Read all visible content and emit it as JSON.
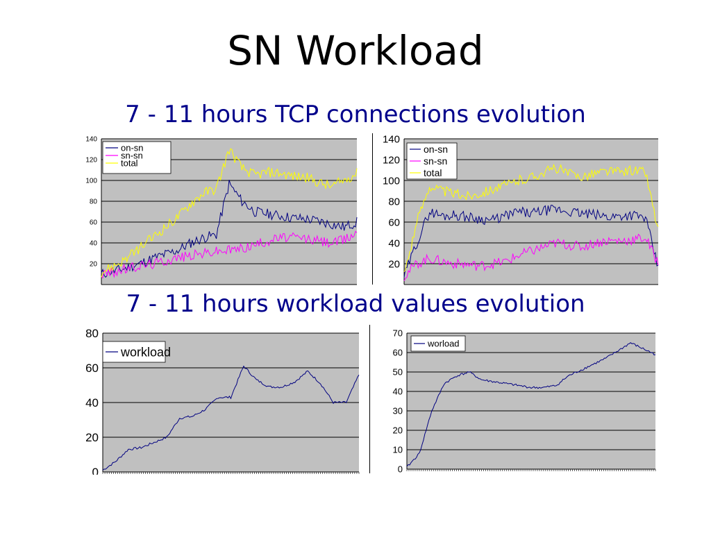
{
  "slide": {
    "title": "SN Workload",
    "heading_tcp": "7 - 11 hours TCP connections evolution",
    "heading_workload": "7 - 11 hours workload values evolution"
  },
  "colors": {
    "plot_bg": "#c0c0c0",
    "gridline": "#000000",
    "on_sn": "#000080",
    "sn_sn": "#ff00ff",
    "total": "#ffff00",
    "workload": "#000080",
    "title": "#000000",
    "heading": "#00008b"
  },
  "chart_data": [
    {
      "type": "line",
      "ylim": [
        0,
        140
      ],
      "ytick_labels": [
        "20",
        "40",
        "60",
        "80",
        "100",
        "120",
        "140"
      ],
      "grid": true,
      "legend_position": "top-left",
      "x": [
        0,
        5,
        10,
        15,
        20,
        25,
        30,
        35,
        40,
        45,
        50,
        55,
        60,
        65,
        70,
        75,
        80,
        85,
        90,
        95,
        100
      ],
      "series": [
        {
          "name": "on-sn",
          "color": "#000080",
          "values": [
            10,
            13,
            16,
            20,
            25,
            29,
            33,
            40,
            45,
            48,
            97,
            80,
            70,
            68,
            66,
            64,
            63,
            61,
            58,
            55,
            60
          ]
        },
        {
          "name": "sn-sn",
          "color": "#ff00ff",
          "values": [
            10,
            12,
            15,
            18,
            20,
            23,
            26,
            28,
            30,
            32,
            33,
            35,
            38,
            42,
            45,
            45,
            44,
            42,
            40,
            43,
            50
          ]
        },
        {
          "name": "total",
          "color": "#ffff00",
          "values": [
            12,
            18,
            25,
            35,
            45,
            55,
            65,
            78,
            88,
            92,
            130,
            112,
            105,
            108,
            107,
            104,
            103,
            98,
            94,
            100,
            107
          ]
        }
      ]
    },
    {
      "type": "line",
      "ylim": [
        0,
        140
      ],
      "ytick_labels": [
        "20",
        "40",
        "60",
        "80",
        "100",
        "120",
        "140"
      ],
      "grid": true,
      "legend_position": "top-left",
      "x": [
        0,
        5,
        10,
        15,
        20,
        25,
        30,
        35,
        40,
        45,
        50,
        55,
        60,
        65,
        70,
        75,
        80,
        85,
        90,
        95,
        100
      ],
      "series": [
        {
          "name": "on-sn",
          "color": "#000080",
          "values": [
            8,
            40,
            70,
            66,
            67,
            65,
            63,
            62,
            66,
            70,
            68,
            71,
            72,
            70,
            68,
            67,
            65,
            66,
            67,
            64,
            15
          ]
        },
        {
          "name": "sn-sn",
          "color": "#ff00ff",
          "values": [
            8,
            20,
            25,
            22,
            20,
            19,
            18,
            20,
            22,
            28,
            32,
            36,
            40,
            38,
            36,
            40,
            42,
            42,
            43,
            45,
            20
          ]
        },
        {
          "name": "total",
          "color": "#ffff00",
          "values": [
            10,
            60,
            95,
            90,
            87,
            85,
            88,
            92,
            95,
            100,
            103,
            108,
            112,
            106,
            104,
            107,
            109,
            108,
            110,
            108,
            52
          ]
        }
      ]
    },
    {
      "type": "line",
      "ylim": [
        0,
        80
      ],
      "ytick_labels": [
        "0",
        "20",
        "40",
        "60",
        "80"
      ],
      "grid": true,
      "legend_position": "top-left",
      "x": [
        0,
        5,
        10,
        15,
        20,
        25,
        30,
        35,
        40,
        45,
        50,
        55,
        60,
        65,
        70,
        75,
        80,
        85,
        90,
        95,
        100
      ],
      "series": [
        {
          "name": "workload",
          "color": "#000080",
          "values": [
            1,
            6,
            13,
            14,
            17,
            20,
            31,
            32,
            36,
            43,
            43,
            61,
            53,
            49,
            49,
            52,
            58,
            51,
            40,
            40,
            56
          ]
        }
      ]
    },
    {
      "type": "line",
      "ylim": [
        0,
        70
      ],
      "ytick_labels": [
        "0",
        "10",
        "20",
        "30",
        "40",
        "50",
        "60",
        "70"
      ],
      "grid": true,
      "legend_position": "top-left",
      "x": [
        0,
        5,
        10,
        15,
        20,
        25,
        30,
        35,
        40,
        45,
        50,
        55,
        60,
        65,
        70,
        75,
        80,
        85,
        90,
        95,
        100
      ],
      "series": [
        {
          "name": "worload",
          "color": "#000080",
          "values": [
            1,
            8,
            30,
            44,
            48,
            50,
            46,
            45,
            44,
            43,
            42,
            42,
            43,
            48,
            51,
            54,
            57,
            61,
            65,
            62,
            59
          ]
        }
      ]
    }
  ]
}
